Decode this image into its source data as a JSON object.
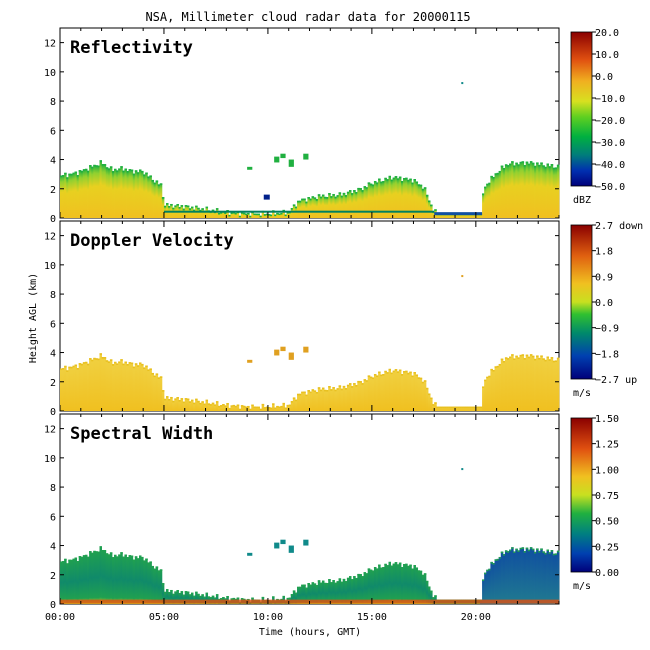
{
  "title": "NSA, Millimeter cloud radar data for 20000115",
  "xlabel": "Time (hours, GMT)",
  "ylabel": "Height AGL (km)",
  "x_ticks": [
    "00:00",
    "05:00",
    "10:00",
    "15:00",
    "20:00"
  ],
  "y_ticks": [
    "0",
    "2",
    "4",
    "6",
    "8",
    "10",
    "12"
  ],
  "chart_data": [
    {
      "type": "heatmap",
      "title": "Reflectivity",
      "xlabel": "Time (hours, GMT)",
      "ylabel": "Height AGL (km)",
      "xlim": [
        0,
        24
      ],
      "ylim": [
        0,
        13
      ],
      "colorbar": {
        "range": [
          -50,
          20
        ],
        "unit": "dBZ",
        "tick_labels": [
          "20.0",
          "10.0",
          "0.0",
          "−10.0",
          "−20.0",
          "−30.0",
          "−40.0",
          "−50.0"
        ]
      },
      "cloud_top_km": [
        [
          0,
          2.9
        ],
        [
          0.5,
          3.0
        ],
        [
          1.0,
          3.2
        ],
        [
          1.5,
          3.5
        ],
        [
          2.0,
          3.8
        ],
        [
          2.5,
          3.3
        ],
        [
          3.0,
          3.4
        ],
        [
          3.5,
          3.2
        ],
        [
          4.0,
          3.2
        ],
        [
          4.5,
          2.6
        ],
        [
          4.9,
          2.2
        ],
        [
          5.0,
          0.9
        ],
        [
          6.0,
          0.8
        ],
        [
          7.0,
          0.6
        ],
        [
          8.0,
          0.4
        ],
        [
          9.0,
          0.3
        ],
        [
          10.0,
          0.3
        ],
        [
          11.0,
          0.4
        ],
        [
          11.5,
          1.2
        ],
        [
          12.5,
          1.5
        ],
        [
          13.5,
          1.6
        ],
        [
          14.5,
          2.0
        ],
        [
          15.0,
          2.4
        ],
        [
          16.0,
          2.8
        ],
        [
          17.0,
          2.6
        ],
        [
          17.5,
          2.1
        ],
        [
          18.0,
          0.4
        ],
        [
          20.0,
          0.3
        ],
        [
          20.5,
          2.3
        ],
        [
          21.0,
          3.1
        ],
        [
          21.5,
          3.7
        ],
        [
          22.5,
          3.8
        ],
        [
          24.0,
          3.5
        ]
      ],
      "typical_value_dbz": -15
    },
    {
      "type": "heatmap",
      "title": "Doppler Velocity",
      "xlabel": "Time (hours, GMT)",
      "ylabel": "Height AGL (km)",
      "xlim": [
        0,
        24
      ],
      "ylim": [
        0,
        13
      ],
      "colorbar": {
        "range": [
          -2.7,
          2.7
        ],
        "unit": "m/s",
        "tick_labels": [
          "2.7 down",
          "1.8",
          "0.9",
          "0.0",
          "−0.9",
          "−1.8",
          "−2.7 up"
        ]
      },
      "typical_value_ms": 0.5
    },
    {
      "type": "heatmap",
      "title": "Spectral Width",
      "xlabel": "Time (hours, GMT)",
      "ylabel": "Height AGL (km)",
      "xlim": [
        0,
        24
      ],
      "ylim": [
        0,
        13
      ],
      "colorbar": {
        "range": [
          0,
          1.5
        ],
        "unit": "m/s",
        "tick_labels": [
          "1.50",
          "1.25",
          "1.00",
          "0.75",
          "0.50",
          "0.25",
          "0.00"
        ]
      },
      "typical_value_ms": 0.3
    }
  ]
}
